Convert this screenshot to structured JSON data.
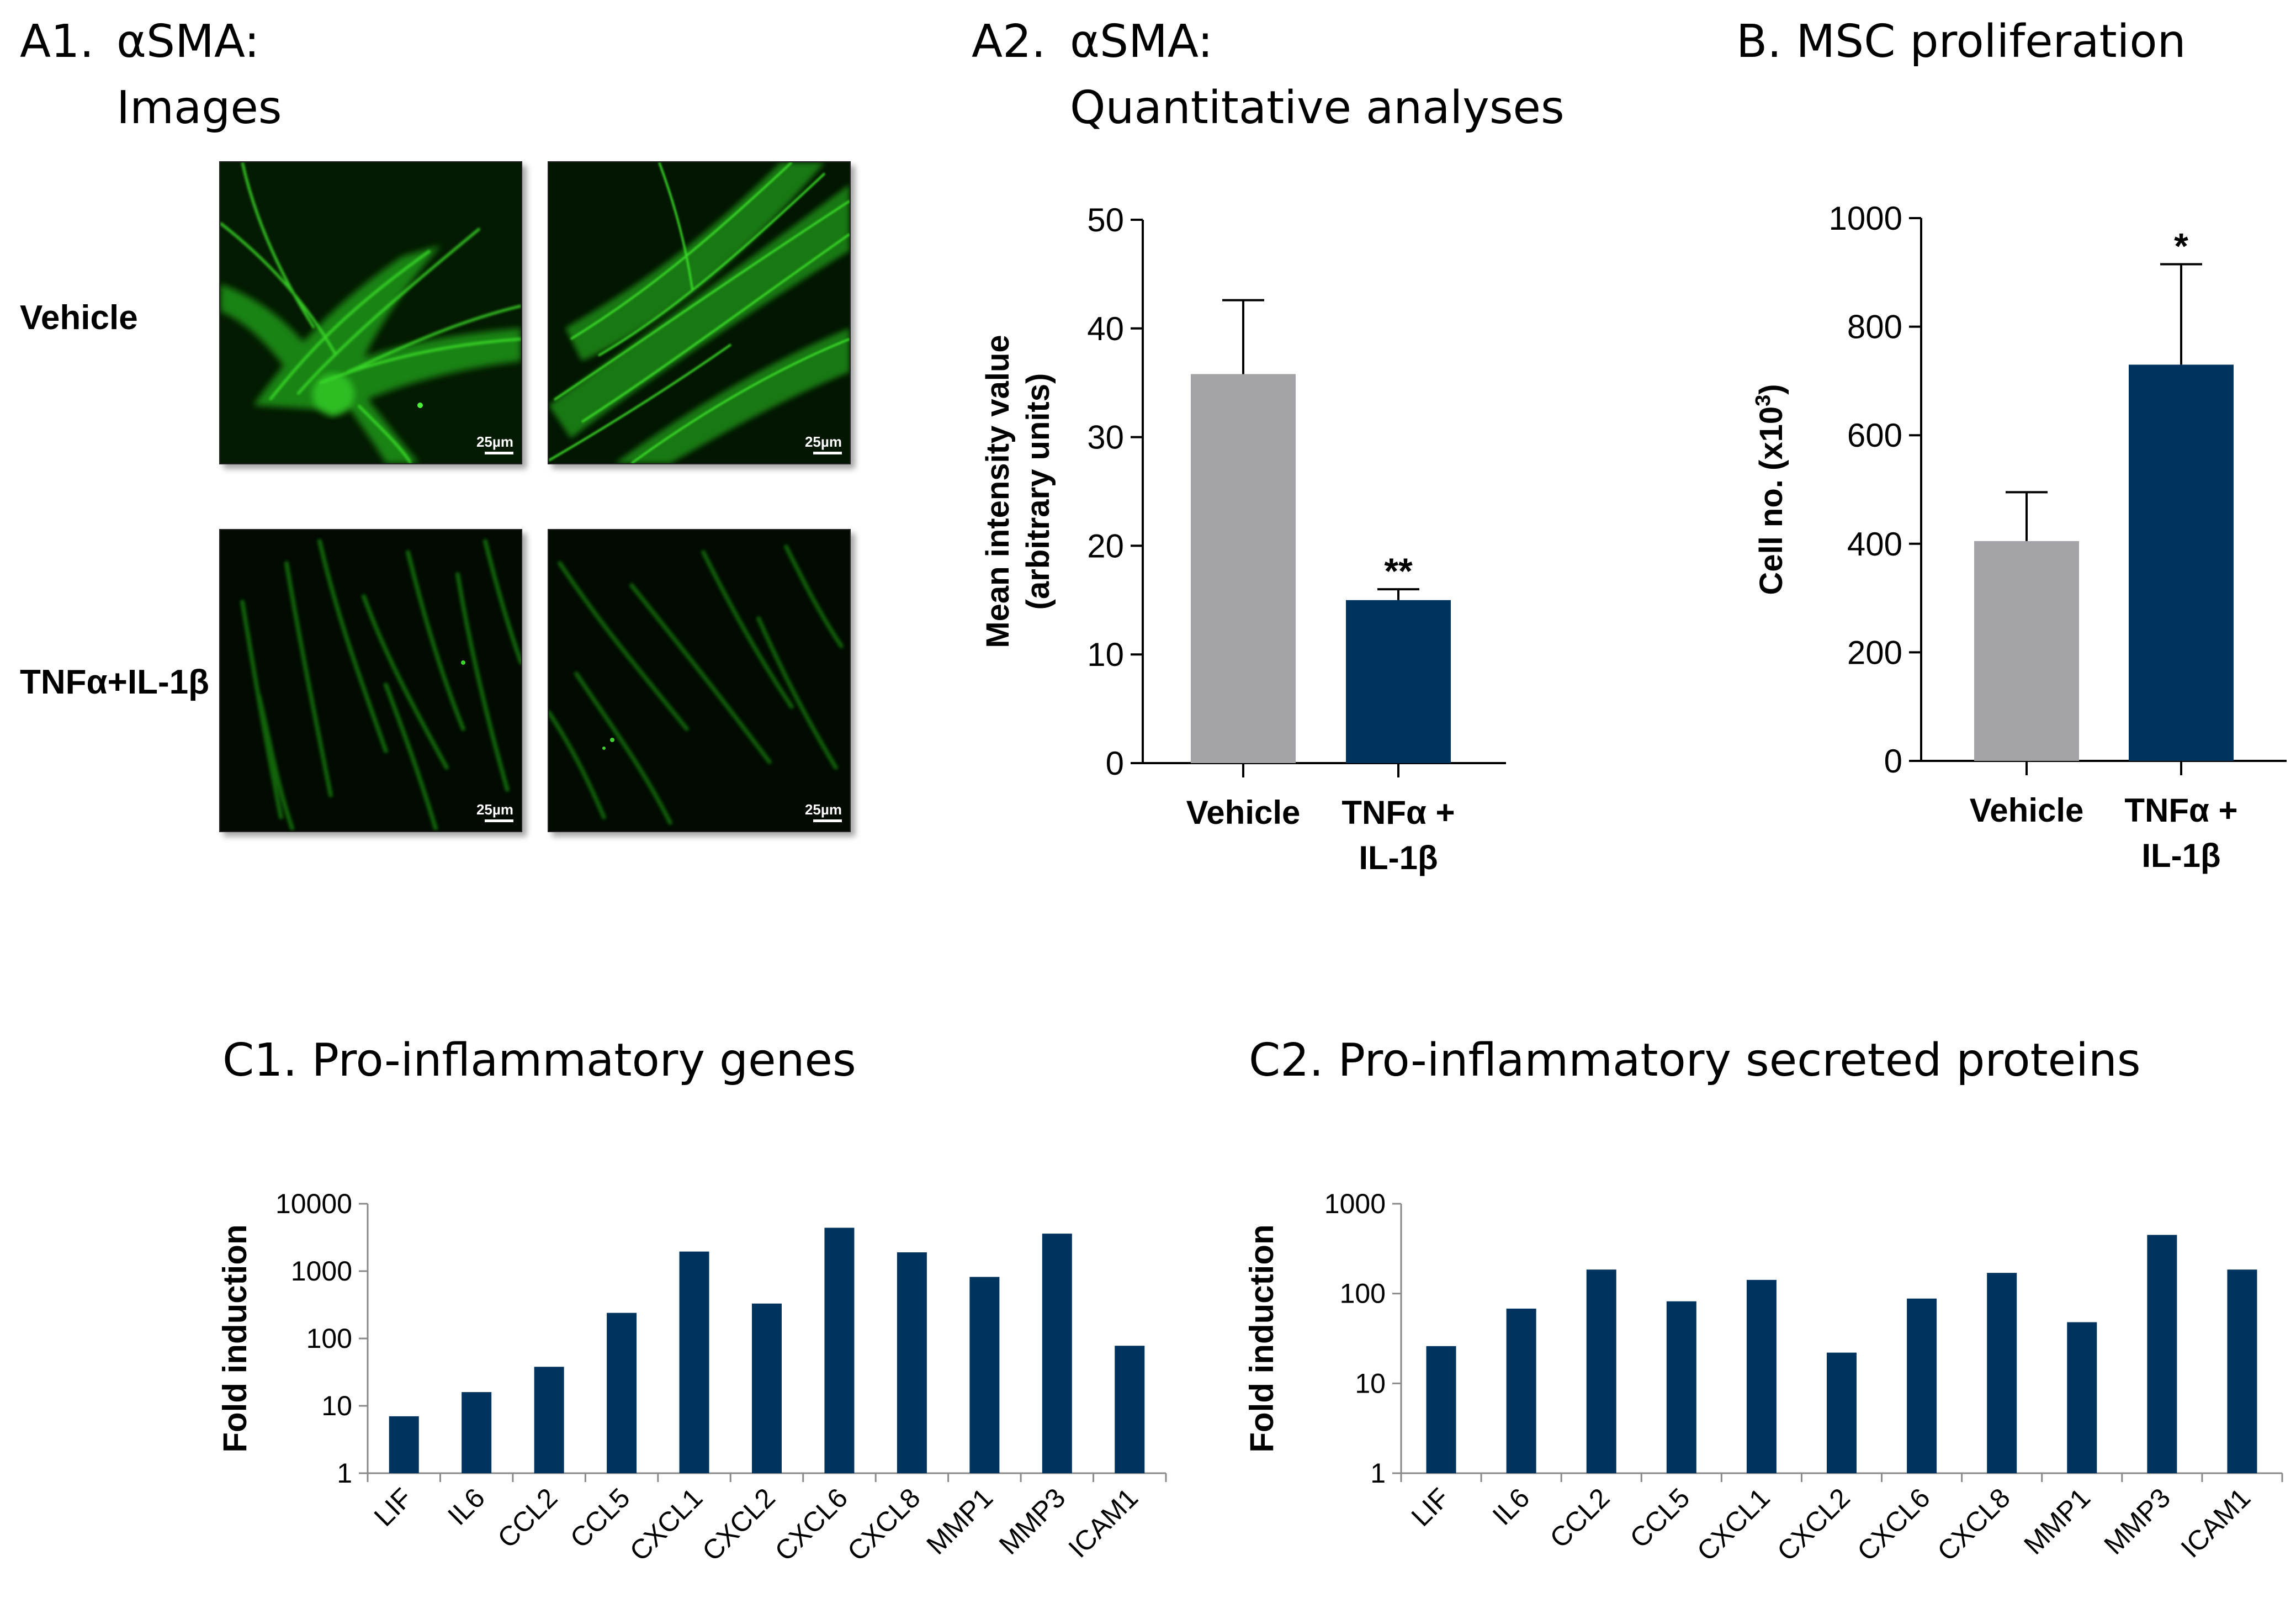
{
  "panels": {
    "a1": {
      "label": "A1.",
      "title_line1": "αSMA:",
      "title_line2": "Images"
    },
    "a2": {
      "label": "A2.",
      "title_line1": "αSMA:",
      "title_line2": "Quantitative analyses"
    },
    "b": {
      "label": "B.",
      "title": "MSC proliferation"
    },
    "c1": {
      "label": "C1.",
      "title": "Pro-inflammatory genes"
    },
    "c2": {
      "label": "C2.",
      "title": "Pro-inflammatory secreted proteins"
    }
  },
  "micrographs": {
    "row_labels": [
      "Vehicle",
      "TNFα+IL-1β"
    ],
    "scale_bar": "25µm",
    "count_per_row": 2
  },
  "colors": {
    "vehicle": "#a3a3a8",
    "treated": "#00335e",
    "axis": "#000000",
    "fluor": "#2fd11e"
  },
  "chart_data": [
    {
      "id": "A2",
      "type": "bar",
      "categories": [
        [
          "Vehicle"
        ],
        [
          "TNFα +",
          "IL-1β"
        ]
      ],
      "values": [
        35.8,
        15.0
      ],
      "errors": [
        6.8,
        1.0
      ],
      "significance": [
        "",
        "**"
      ],
      "ylabel_line1": "Mean intensity value",
      "ylabel_line2": "(arbitrary units)",
      "ylim": [
        0,
        50
      ],
      "yticks": [
        0,
        10,
        20,
        30,
        40,
        50
      ]
    },
    {
      "id": "B",
      "type": "bar",
      "categories": [
        [
          "Vehicle"
        ],
        [
          "TNFα +",
          "IL-1β"
        ]
      ],
      "values": [
        405,
        730
      ],
      "errors": [
        90,
        185
      ],
      "significance": [
        "",
        "*"
      ],
      "ylabel": "Cell no. (x10",
      "ylabel_sup": "3",
      "ylabel_end": ")",
      "ylim": [
        0,
        1000
      ],
      "yticks": [
        0,
        200,
        400,
        600,
        800,
        1000
      ]
    },
    {
      "id": "C1",
      "type": "bar",
      "scale": "log",
      "categories": [
        "LIF",
        "IL6",
        "CCL2",
        "CCL5",
        "CXCL1",
        "CXCL2",
        "CXCL6",
        "CXCL8",
        "MMP1",
        "MMP3",
        "ICAM1"
      ],
      "values": [
        7,
        16,
        38,
        240,
        1950,
        330,
        4400,
        1900,
        820,
        3600,
        78
      ],
      "ylabel": "Fold induction",
      "ylim": [
        1,
        10000
      ],
      "yticks": [
        1,
        10,
        100,
        1000,
        10000
      ]
    },
    {
      "id": "C2",
      "type": "bar",
      "scale": "log",
      "categories": [
        "LIF",
        "IL6",
        "CCL2",
        "CCL5",
        "CXCL1",
        "CXCL2",
        "CXCL6",
        "CXCL8",
        "MMP1",
        "MMP3",
        "ICAM1"
      ],
      "values": [
        26,
        68,
        185,
        82,
        142,
        22,
        88,
        170,
        48,
        450,
        185
      ],
      "ylabel": "Fold induction",
      "ylim": [
        1,
        1000
      ],
      "yticks": [
        1,
        10,
        100,
        1000
      ]
    }
  ]
}
